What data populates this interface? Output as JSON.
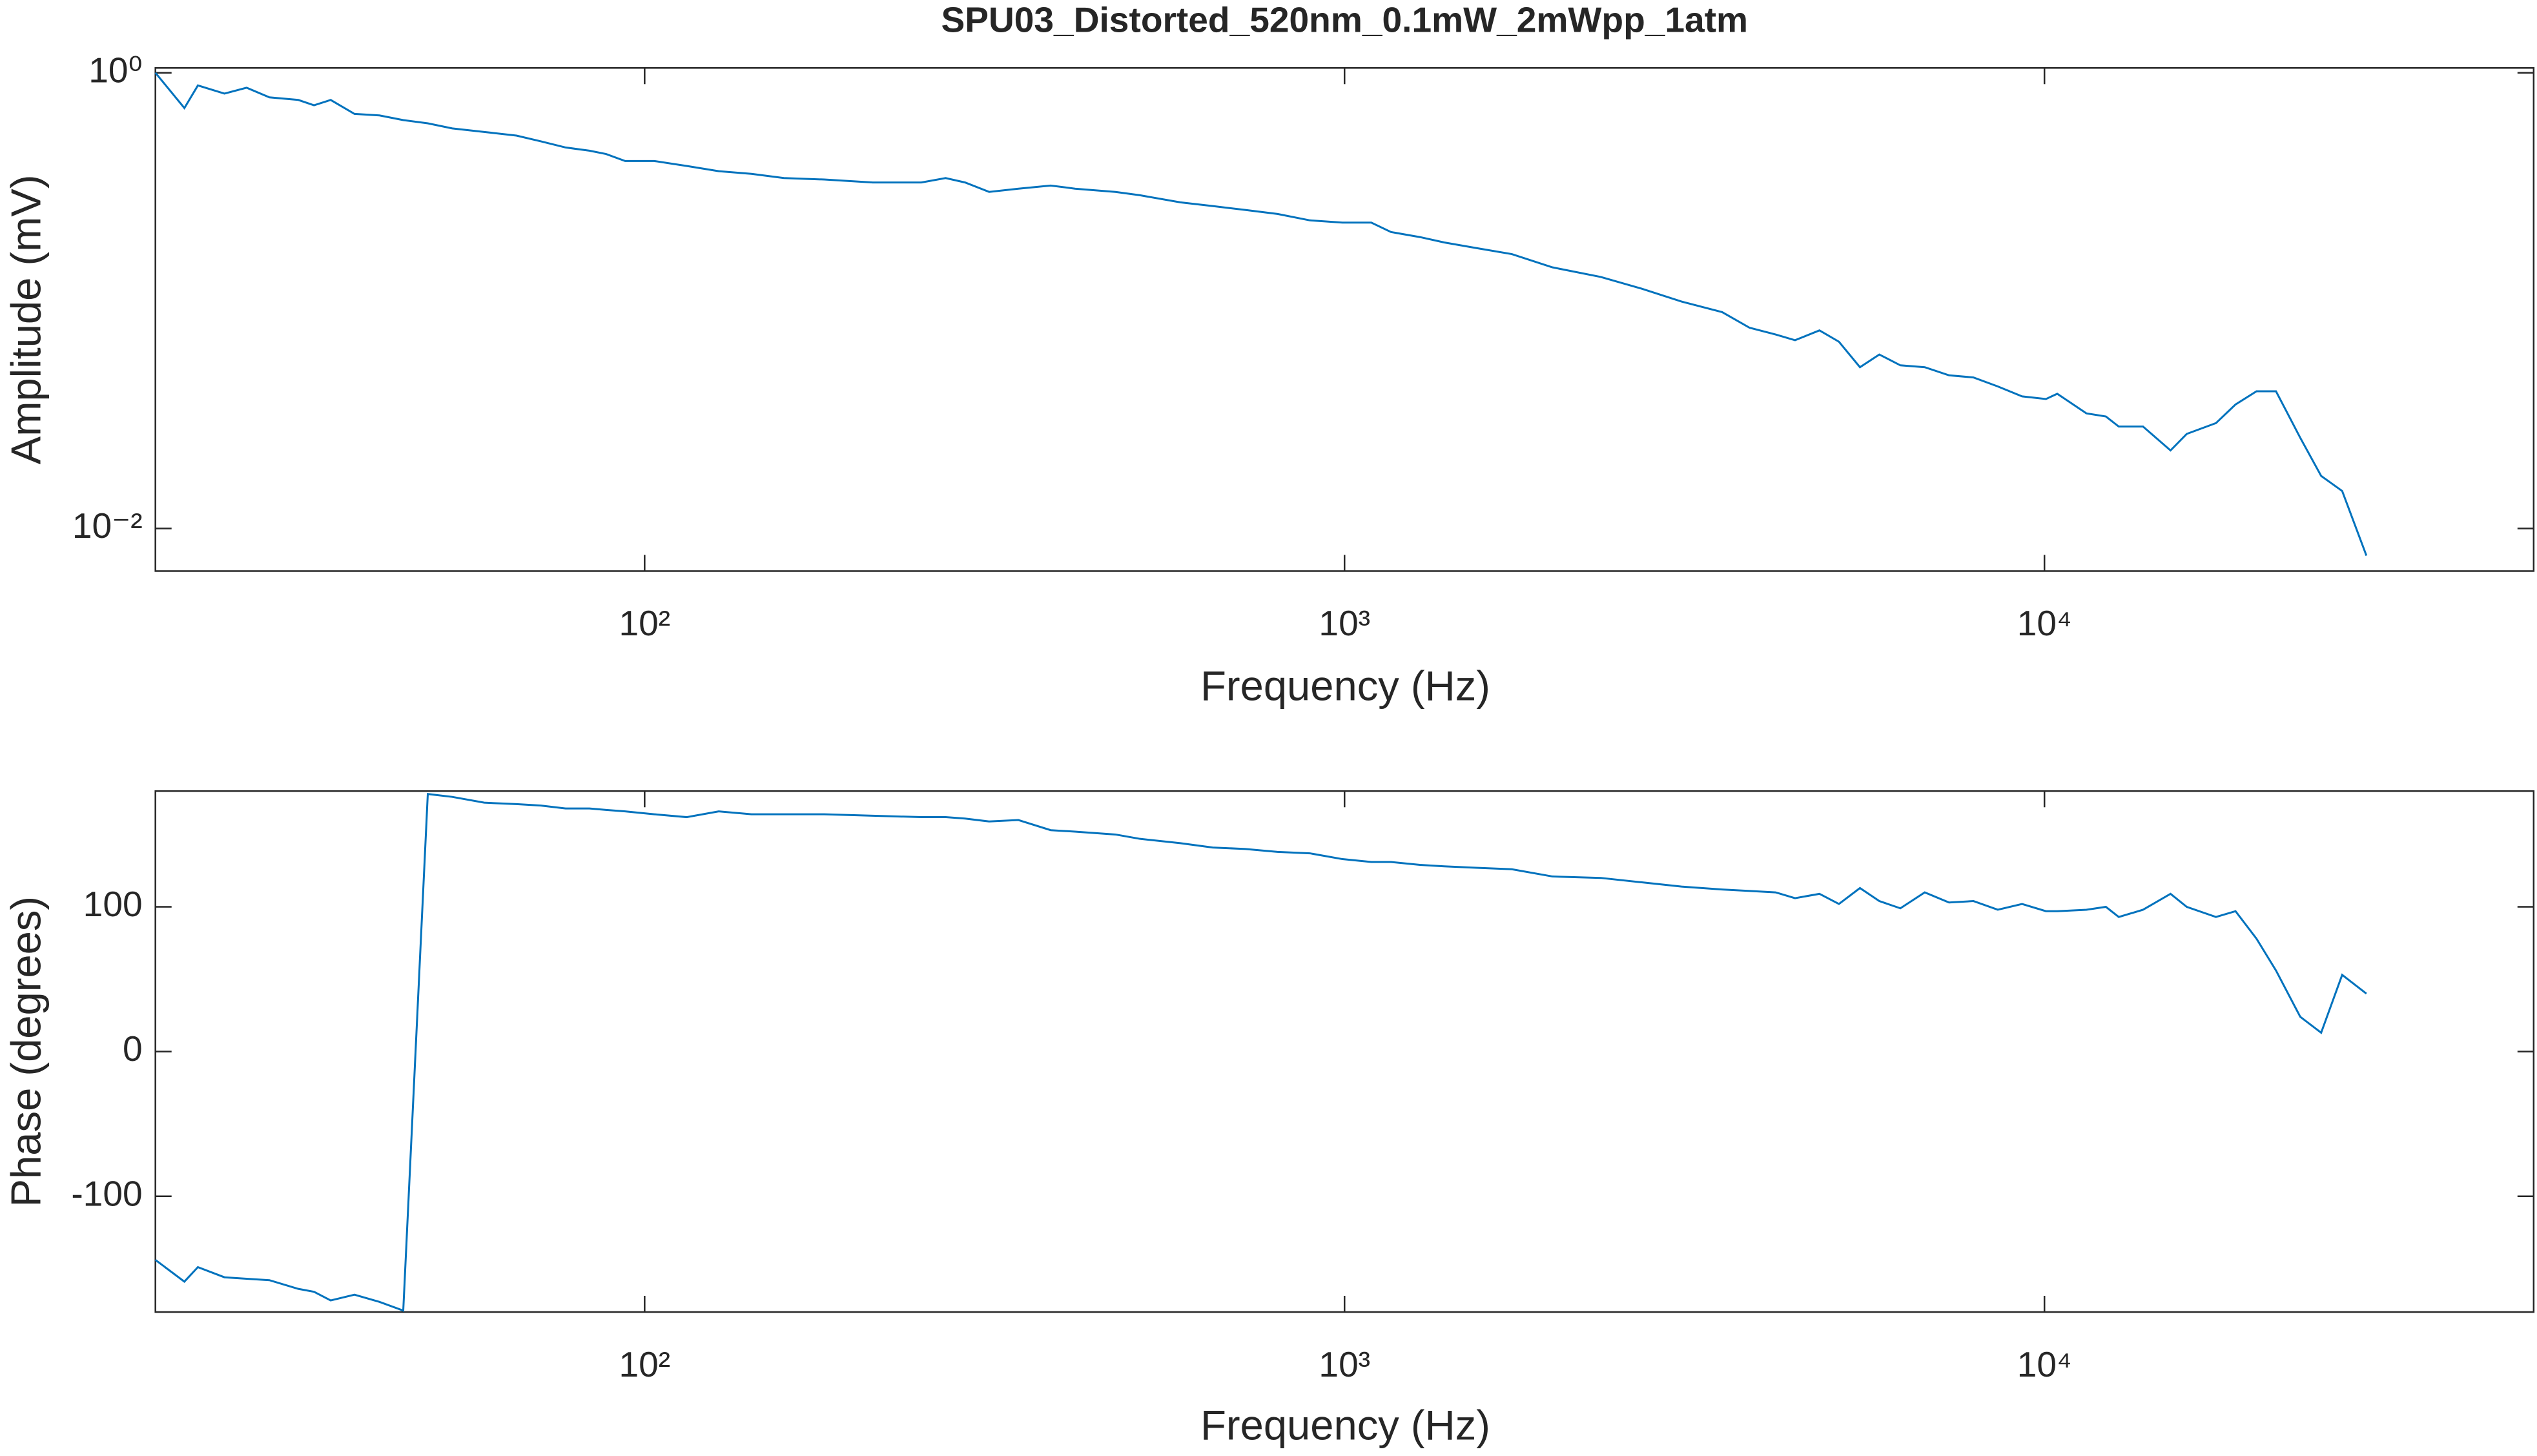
{
  "chart_data": [
    {
      "type": "line",
      "title": "SPU03_Distorted_520nm_0.1mW_2mWpp_1atm",
      "xlabel": "Frequency (Hz)",
      "ylabel": "Amplitude (mV)",
      "xscale": "log",
      "yscale": "log",
      "color": "#0072bd",
      "xlim": [
        20,
        50000
      ],
      "ylim": [
        0.0065,
        1.05
      ],
      "xticks": [
        {
          "value": 100,
          "label": "10²"
        },
        {
          "value": 1000,
          "label": "10³"
        },
        {
          "value": 10000,
          "label": "10⁴"
        }
      ],
      "yticks": [
        {
          "value": 0.01,
          "label": "10⁻²"
        },
        {
          "value": 1,
          "label": "10⁰"
        }
      ],
      "x": [
        20,
        22,
        23,
        25.1,
        27,
        29.1,
        32,
        33.7,
        35.6,
        38.5,
        41.8,
        45.2,
        49,
        53.1,
        59,
        65.6,
        71.1,
        77.1,
        83.4,
        88.1,
        93.8,
        103.2,
        114.8,
        127.6,
        142.1,
        158.1,
        180.6,
        211.8,
        248.5,
        269.2,
        287,
        310.6,
        342,
        380.3,
        412,
        470.7,
        510.2,
        582.6,
        648.1,
        721.2,
        802.3,
        892.3,
        993,
        1092,
        1165,
        1282,
        1388,
        1544,
        1734,
        1981,
        2323,
        2653,
        3031,
        3464,
        3791,
        4130,
        4402,
        4770,
        5086,
        5450,
        5808,
        6225,
        6745,
        7306,
        7917,
        8577,
        9290,
        10050,
        10430,
        11480,
        12240,
        12770,
        13830,
        15140,
        15970,
        17580,
        18750,
        20090,
        21420,
        23200,
        24850,
        26630,
        28840
      ],
      "values": [
        1.0,
        0.7,
        0.88,
        0.81,
        0.86,
        0.78,
        0.76,
        0.72,
        0.76,
        0.66,
        0.65,
        0.62,
        0.6,
        0.57,
        0.55,
        0.53,
        0.5,
        0.47,
        0.455,
        0.44,
        0.41,
        0.41,
        0.39,
        0.37,
        0.36,
        0.345,
        0.34,
        0.33,
        0.33,
        0.345,
        0.33,
        0.3,
        0.31,
        0.32,
        0.31,
        0.3,
        0.29,
        0.27,
        0.26,
        0.25,
        0.24,
        0.225,
        0.22,
        0.22,
        0.2,
        0.19,
        0.18,
        0.17,
        0.16,
        0.14,
        0.127,
        0.113,
        0.099,
        0.089,
        0.076,
        0.071,
        0.067,
        0.074,
        0.066,
        0.051,
        0.058,
        0.052,
        0.051,
        0.047,
        0.046,
        0.042,
        0.038,
        0.037,
        0.039,
        0.032,
        0.031,
        0.028,
        0.028,
        0.022,
        0.026,
        0.029,
        0.035,
        0.04,
        0.04,
        0.025,
        0.017,
        0.0146,
        0.0076
      ]
    },
    {
      "type": "line",
      "xlabel": "Frequency (Hz)",
      "ylabel": "Phase (degrees)",
      "xscale": "log",
      "yscale": "linear",
      "color": "#0072bd",
      "xlim": [
        20,
        50000
      ],
      "ylim": [
        -180,
        180
      ],
      "xticks": [
        {
          "value": 100,
          "label": "10²"
        },
        {
          "value": 1000,
          "label": "10³"
        },
        {
          "value": 10000,
          "label": "10⁴"
        }
      ],
      "yticks": [
        -100,
        0,
        100
      ],
      "x": [
        20,
        22,
        23,
        25.1,
        27,
        29.1,
        32,
        33.7,
        35.6,
        38.5,
        41.8,
        45.2,
        49,
        53.1,
        59,
        65.6,
        71.1,
        77.1,
        83.4,
        88.1,
        93.8,
        103.2,
        114.8,
        127.6,
        142.1,
        158.1,
        180.6,
        211.8,
        248.5,
        269.2,
        287,
        310.6,
        342,
        380.3,
        412,
        470.7,
        510.2,
        582.6,
        648.1,
        721.2,
        802.3,
        892.3,
        993,
        1092,
        1165,
        1282,
        1388,
        1544,
        1734,
        1981,
        2323,
        2653,
        3031,
        3464,
        3791,
        4130,
        4402,
        4770,
        5086,
        5450,
        5808,
        6225,
        6745,
        7306,
        7917,
        8577,
        9290,
        10050,
        10430,
        11480,
        12240,
        12770,
        13830,
        15140,
        15970,
        17580,
        18750,
        20090,
        21420,
        23200,
        24850,
        26630,
        28840
      ],
      "values": [
        -144,
        -159,
        -149,
        -156,
        -157,
        -158,
        -164,
        -166,
        -172,
        -168,
        -173,
        -179,
        178,
        176,
        172,
        171,
        170,
        168,
        168,
        167,
        166,
        164,
        162,
        166,
        164,
        164,
        164,
        163,
        162,
        162,
        161,
        159,
        160,
        153,
        152,
        150,
        147,
        144,
        141,
        140,
        138,
        137,
        133,
        131,
        131,
        129,
        128,
        127,
        126,
        121,
        120,
        117,
        114,
        112,
        111,
        110,
        106,
        109,
        102,
        113,
        104,
        99,
        110,
        103,
        104,
        98,
        102,
        97,
        97,
        98,
        100,
        93,
        98,
        109,
        100,
        93,
        97,
        78,
        56,
        24,
        13,
        53,
        40
      ]
    }
  ]
}
